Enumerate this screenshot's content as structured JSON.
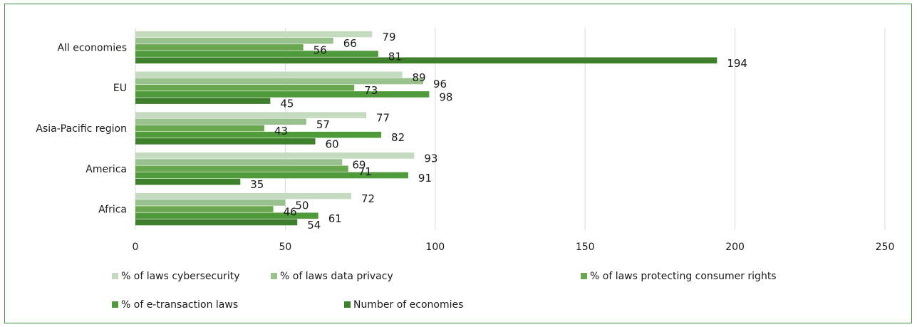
{
  "chart_data": {
    "type": "bar",
    "orientation": "horizontal",
    "categories": [
      "All economies",
      "EU",
      "Asia-Pacific region",
      "America",
      "Africa"
    ],
    "series": [
      {
        "name": "% of laws cybersecurity",
        "color": "#c5dbbf",
        "values": [
          79,
          89,
          77,
          93,
          72
        ]
      },
      {
        "name": "% of laws data privacy",
        "color": "#98c18d",
        "values": [
          66,
          96,
          57,
          69,
          50
        ]
      },
      {
        "name": "% of laws protecting consumer rights",
        "color": "#6aa84f",
        "values": [
          56,
          73,
          43,
          71,
          46
        ]
      },
      {
        "name": "% of e-transaction laws",
        "color": "#4f9a3a",
        "values": [
          81,
          98,
          82,
          91,
          61
        ]
      },
      {
        "name": "Number of economies",
        "color": "#3d7f2b",
        "values": [
          194,
          45,
          60,
          35,
          54
        ]
      }
    ],
    "xlim": [
      0,
      250
    ],
    "xticks": [
      "0",
      "50",
      "100",
      "150",
      "200",
      "250"
    ],
    "grid": true,
    "legend_position": "bottom"
  }
}
